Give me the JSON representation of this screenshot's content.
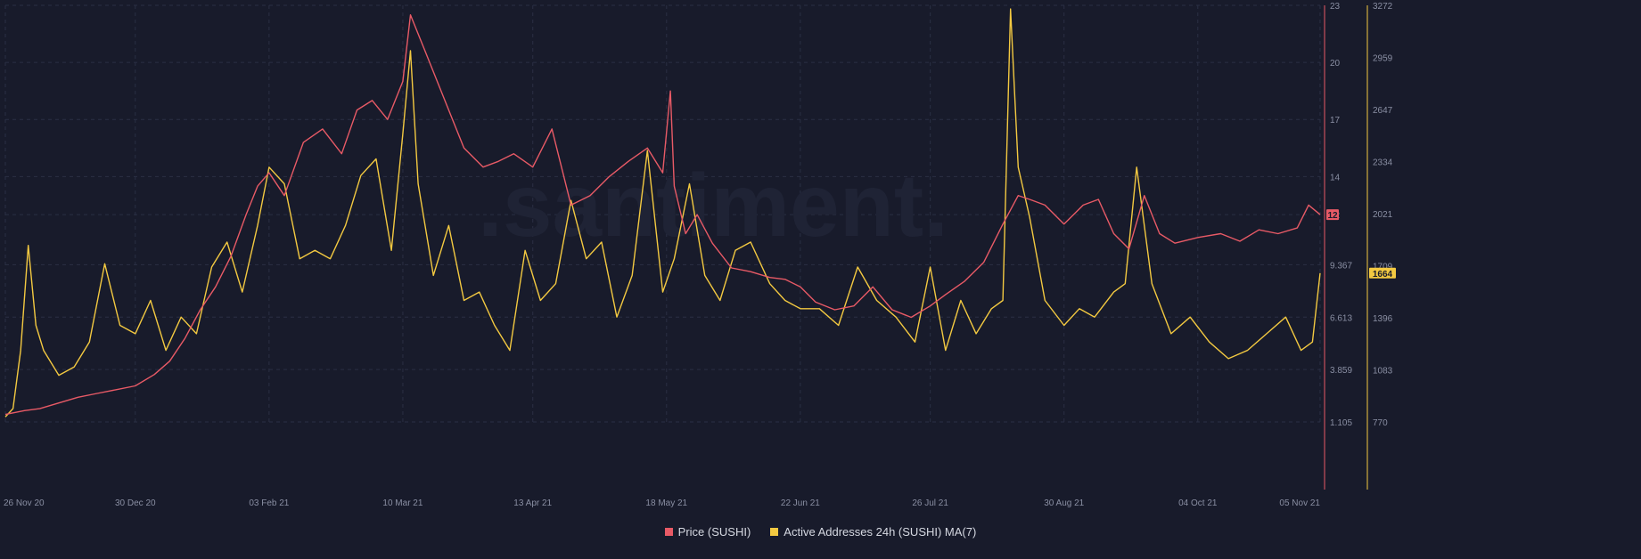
{
  "watermark": ".santiment.",
  "colors": {
    "background": "#181b2b",
    "price": "#e85a66",
    "addresses": "#f3c941",
    "grid": "#2a2f44",
    "tick_text": "#8a8fa3"
  },
  "chart_data": {
    "type": "line",
    "x_ticks": [
      "26 Nov 20",
      "30 Dec 20",
      "03 Feb 21",
      "10 Mar 21",
      "13 Apr 21",
      "18 May 21",
      "22 Jun 21",
      "26 Jul 21",
      "30 Aug 21",
      "04 Oct 21",
      "05 Nov 21"
    ],
    "price_axis": {
      "ticks": [
        "23",
        "20",
        "17",
        "14",
        "12",
        "9.367",
        "6.613",
        "3.859",
        "1.105"
      ],
      "tick_values": [
        23,
        20,
        17,
        14,
        12,
        9.367,
        6.613,
        3.859,
        1.105
      ],
      "ylim": [
        1.105,
        23
      ],
      "current": "12"
    },
    "addresses_axis": {
      "ticks": [
        "3272",
        "2959",
        "2647",
        "2334",
        "2021",
        "1709",
        "1396",
        "1083",
        "770"
      ],
      "ylim": [
        770,
        3272
      ],
      "current": "1664"
    },
    "legend": [
      "Price (SUSHI)",
      "Active Addresses 24h (SUSHI) MA(7)"
    ],
    "series": [
      {
        "name": "Price (SUSHI)",
        "axis": "left",
        "x": [
          "26 Nov 20",
          "1 Dec 20",
          "5 Dec 20",
          "10 Dec 20",
          "15 Dec 20",
          "20 Dec 20",
          "25 Dec 20",
          "30 Dec 20",
          "4 Jan 21",
          "8 Jan 21",
          "12 Jan 21",
          "16 Jan 21",
          "20 Jan 21",
          "24 Jan 21",
          "28 Jan 21",
          "31 Jan 21",
          "3 Feb 21",
          "7 Feb 21",
          "12 Feb 21",
          "17 Feb 21",
          "22 Feb 21",
          "26 Feb 21",
          "2 Mar 21",
          "6 Mar 21",
          "10 Mar 21",
          "12 Mar 21",
          "16 Mar 21",
          "21 Mar 21",
          "26 Mar 21",
          "31 Mar 21",
          "4 Apr 21",
          "8 Apr 21",
          "13 Apr 21",
          "18 Apr 21",
          "23 Apr 21",
          "28 Apr 21",
          "3 May 21",
          "8 May 21",
          "13 May 21",
          "17 May 21",
          "19 May 21",
          "20 May 21",
          "23 May 21",
          "26 May 21",
          "30 May 21",
          "4 Jun 21",
          "9 Jun 21",
          "14 Jun 21",
          "18 Jun 21",
          "22 Jun 21",
          "26 Jun 21",
          "1 Jul 21",
          "6 Jul 21",
          "11 Jul 21",
          "16 Jul 21",
          "21 Jul 21",
          "26 Jul 21",
          "30 Jul 21",
          "4 Aug 21",
          "9 Aug 21",
          "14 Aug 21",
          "18 Aug 21",
          "21 Aug 21",
          "25 Aug 21",
          "30 Aug 21",
          "4 Sep 21",
          "8 Sep 21",
          "12 Sep 21",
          "16 Sep 21",
          "20 Sep 21",
          "24 Sep 21",
          "28 Sep 21",
          "4 Oct 21",
          "10 Oct 21",
          "15 Oct 21",
          "20 Oct 21",
          "25 Oct 21",
          "30 Oct 21",
          "2 Nov 21",
          "5 Nov 21"
        ],
        "values": [
          1.5,
          1.7,
          1.8,
          2.1,
          2.4,
          2.6,
          2.8,
          3.0,
          3.6,
          4.3,
          5.5,
          7.0,
          8.2,
          9.8,
          12.0,
          13.5,
          14.2,
          13.0,
          15.8,
          16.5,
          15.2,
          17.5,
          18.0,
          17.0,
          19.0,
          22.5,
          20.5,
          18.0,
          15.5,
          14.5,
          14.8,
          15.2,
          14.5,
          16.5,
          12.5,
          13.0,
          14.0,
          14.8,
          15.5,
          14.2,
          18.5,
          13.5,
          11.0,
          12.0,
          10.5,
          9.2,
          9.0,
          8.7,
          8.6,
          8.2,
          7.4,
          7.0,
          7.2,
          8.2,
          7.0,
          6.6,
          7.2,
          7.8,
          8.5,
          9.5,
          11.5,
          13.0,
          12.8,
          12.5,
          11.5,
          12.5,
          12.8,
          11.0,
          10.2,
          13.0,
          11.0,
          10.5,
          10.8,
          11.0,
          10.6,
          11.2,
          11.0,
          11.3,
          12.5,
          12.0
        ]
      },
      {
        "name": "Active Addresses 24h (SUSHI) MA(7)",
        "axis": "right",
        "x": [
          "26 Nov 20",
          "28 Nov 20",
          "30 Nov 20",
          "2 Dec 20",
          "4 Dec 20",
          "6 Dec 20",
          "10 Dec 20",
          "14 Dec 20",
          "18 Dec 20",
          "22 Dec 20",
          "26 Dec 20",
          "30 Dec 20",
          "3 Jan 21",
          "7 Jan 21",
          "11 Jan 21",
          "15 Jan 21",
          "19 Jan 21",
          "23 Jan 21",
          "27 Jan 21",
          "31 Jan 21",
          "3 Feb 21",
          "7 Feb 21",
          "11 Feb 21",
          "15 Feb 21",
          "19 Feb 21",
          "23 Feb 21",
          "27 Feb 21",
          "3 Mar 21",
          "7 Mar 21",
          "10 Mar 21",
          "12 Mar 21",
          "14 Mar 21",
          "18 Mar 21",
          "22 Mar 21",
          "26 Mar 21",
          "30 Mar 21",
          "3 Apr 21",
          "7 Apr 21",
          "11 Apr 21",
          "15 Apr 21",
          "19 Apr 21",
          "23 Apr 21",
          "27 Apr 21",
          "1 May 21",
          "5 May 21",
          "9 May 21",
          "13 May 21",
          "17 May 21",
          "20 May 21",
          "24 May 21",
          "28 May 21",
          "1 Jun 21",
          "5 Jun 21",
          "9 Jun 21",
          "14 Jun 21",
          "18 Jun 21",
          "22 Jun 21",
          "27 Jun 21",
          "2 Jul 21",
          "7 Jul 21",
          "12 Jul 21",
          "17 Jul 21",
          "22 Jul 21",
          "26 Jul 21",
          "30 Jul 21",
          "3 Aug 21",
          "7 Aug 21",
          "11 Aug 21",
          "14 Aug 21",
          "16 Aug 21",
          "18 Aug 21",
          "21 Aug 21",
          "25 Aug 21",
          "30 Aug 21",
          "3 Sep 21",
          "7 Sep 21",
          "12 Sep 21",
          "15 Sep 21",
          "18 Sep 21",
          "22 Sep 21",
          "27 Sep 21",
          "2 Oct 21",
          "7 Oct 21",
          "12 Oct 21",
          "17 Oct 21",
          "22 Oct 21",
          "27 Oct 21",
          "31 Oct 21",
          "3 Nov 21",
          "5 Nov 21"
        ],
        "values": [
          800,
          850,
          1200,
          1830,
          1350,
          1200,
          1050,
          1100,
          1250,
          1720,
          1350,
          1300,
          1500,
          1200,
          1400,
          1300,
          1700,
          1850,
          1550,
          1950,
          2300,
          2200,
          1750,
          1800,
          1750,
          1950,
          2250,
          2350,
          1800,
          2500,
          3000,
          2200,
          1650,
          1950,
          1500,
          1550,
          1350,
          1200,
          1800,
          1500,
          1600,
          2100,
          1750,
          1850,
          1400,
          1650,
          2400,
          1550,
          1750,
          2200,
          1650,
          1500,
          1800,
          1850,
          1600,
          1500,
          1450,
          1450,
          1350,
          1700,
          1500,
          1400,
          1250,
          1700,
          1200,
          1500,
          1300,
          1450,
          1500,
          3250,
          2300,
          2000,
          1500,
          1350,
          1450,
          1400,
          1550,
          1600,
          2300,
          1600,
          1300,
          1400,
          1250,
          1150,
          1200,
          1300,
          1400,
          1200,
          1250,
          1664
        ]
      }
    ]
  }
}
